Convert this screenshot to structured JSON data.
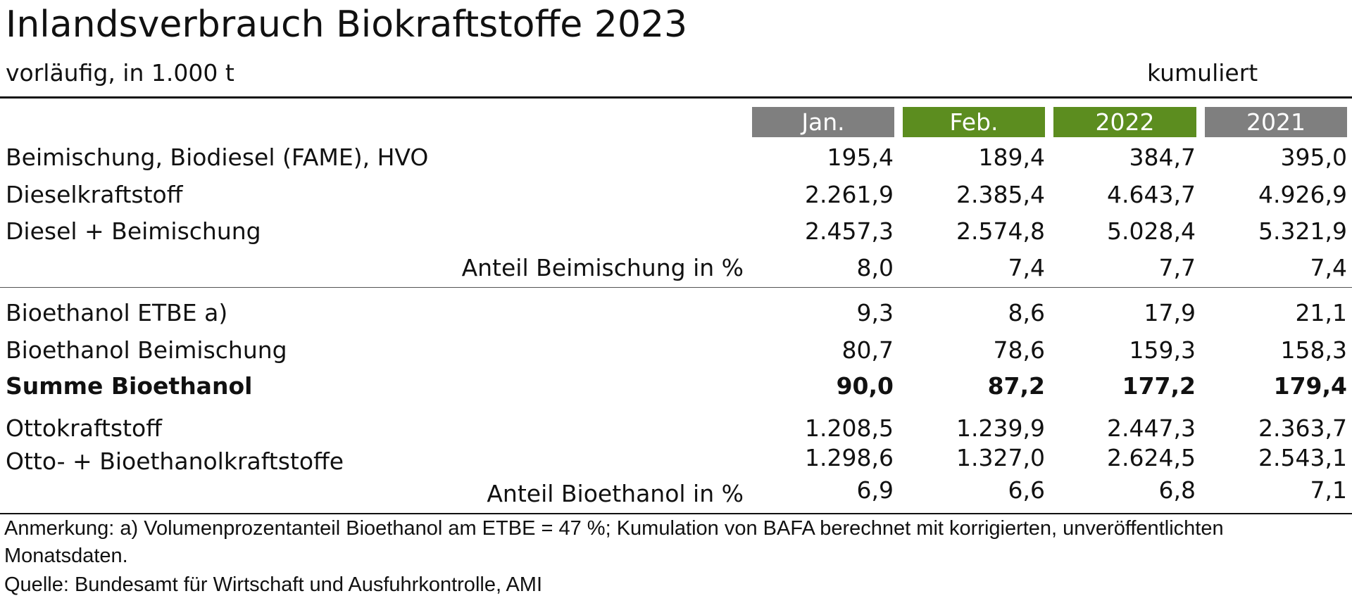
{
  "title": "Inlandsverbrauch Biokraftstoffe 2023",
  "subtitle": "vorläufig, in 1.000 t",
  "cumulative_label": "kumuliert",
  "columns": [
    "Jan.",
    "Feb.",
    "2022",
    "2021"
  ],
  "column_colors": [
    "#7f7f7f",
    "#5c8d1f",
    "#5c8d1f",
    "#7f7f7f"
  ],
  "rows": [
    {
      "label": "Beimischung, Biodiesel (FAME), HVO",
      "values": [
        "195,4",
        "189,4",
        "384,7",
        "395,0"
      ]
    },
    {
      "label": "Dieselkraftstoff",
      "values": [
        "2.261,9",
        "2.385,4",
        "4.643,7",
        "4.926,9"
      ]
    },
    {
      "label": "Diesel + Beimischung",
      "values": [
        "2.457,3",
        "2.574,8",
        "5.028,4",
        "5.321,9"
      ]
    },
    {
      "label": "Anteil Beimischung in %",
      "values": [
        "8,0",
        "7,4",
        "7,7",
        "7,4"
      ]
    },
    {
      "label": "Bioethanol ETBE a)",
      "values": [
        "9,3",
        "8,6",
        "17,9",
        "21,1"
      ]
    },
    {
      "label": "Bioethanol Beimischung",
      "values": [
        "80,7",
        "78,6",
        "159,3",
        "158,3"
      ]
    },
    {
      "label": "Summe Bioethanol",
      "values": [
        "90,0",
        "87,2",
        "177,2",
        "179,4"
      ]
    },
    {
      "label": "Ottokraftstoff",
      "values": [
        "1.208,5",
        "1.239,9",
        "2.447,3",
        "2.363,7"
      ]
    },
    {
      "label": "Otto- + Bioethanolkraftstoffe",
      "values": [
        "1.298,6",
        "1.327,0",
        "2.624,5",
        "2.543,1"
      ]
    },
    {
      "label": "Anteil Bioethanol in %",
      "values": [
        "6,9",
        "6,6",
        "6,8",
        "7,1"
      ]
    }
  ],
  "note_line1": "Anmerkung: a) Volumenprozentanteil Bioethanol am ETBE = 47 %; Kumulation von BAFA berechnet mit korrigierten, unveröffentlichten",
  "note_line2": "Monatsdaten.",
  "source": "Quelle: Bundesamt für Wirtschaft und Ausfuhrkontrolle, AMI"
}
